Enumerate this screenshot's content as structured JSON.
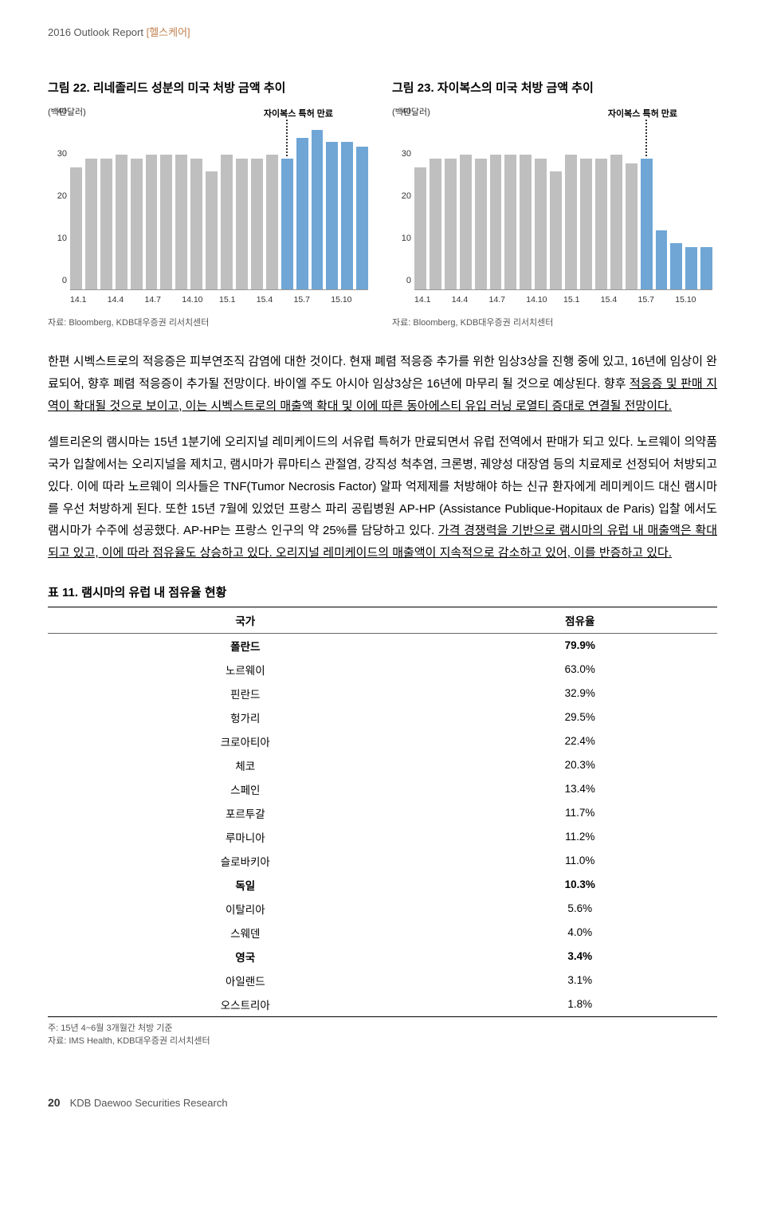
{
  "header": {
    "report_line": "2016 Outlook Report",
    "category": "[헬스케어]"
  },
  "chart_left": {
    "title": "그림 22. 리네졸리드 성분의 미국 처방 금액 추이",
    "ylabel": "(백만달러)",
    "annotation": "자이복스 특허 만료",
    "ylim": [
      0,
      40
    ],
    "yticks": [
      0,
      10,
      20,
      30,
      40
    ],
    "xticks": [
      "14.1",
      "14.4",
      "14.7",
      "14.10",
      "15.1",
      "15.4",
      "15.7",
      "15.10"
    ],
    "bars": [
      {
        "v": 29,
        "h": 0
      },
      {
        "v": 31,
        "h": 0
      },
      {
        "v": 31,
        "h": 0
      },
      {
        "v": 32,
        "h": 0
      },
      {
        "v": 31,
        "h": 0
      },
      {
        "v": 32,
        "h": 0
      },
      {
        "v": 32,
        "h": 0
      },
      {
        "v": 32,
        "h": 0
      },
      {
        "v": 31,
        "h": 0
      },
      {
        "v": 28,
        "h": 0
      },
      {
        "v": 32,
        "h": 0
      },
      {
        "v": 31,
        "h": 0
      },
      {
        "v": 31,
        "h": 0
      },
      {
        "v": 32,
        "h": 0
      },
      {
        "v": 31,
        "h": 1
      },
      {
        "v": 36,
        "h": 1
      },
      {
        "v": 38,
        "h": 1
      },
      {
        "v": 35,
        "h": 1
      },
      {
        "v": 35,
        "h": 1
      },
      {
        "v": 34,
        "h": 1
      }
    ],
    "annotation_bar_index": 14,
    "source": "자료: Bloomberg, KDB대우증권 리서치센터",
    "colors": {
      "gray": "#bfbfbf",
      "blue": "#6fa6d6",
      "axis": "#999999"
    }
  },
  "chart_right": {
    "title": "그림 23. 자이복스의 미국 처방 금액 추이",
    "ylabel": "(백만달러)",
    "annotation": "자이복스 특허 만료",
    "ylim": [
      0,
      40
    ],
    "yticks": [
      0,
      10,
      20,
      30,
      40
    ],
    "xticks": [
      "14.1",
      "14.4",
      "14.7",
      "14.10",
      "15.1",
      "15.4",
      "15.7",
      "15.10"
    ],
    "bars": [
      {
        "v": 29,
        "h": 0
      },
      {
        "v": 31,
        "h": 0
      },
      {
        "v": 31,
        "h": 0
      },
      {
        "v": 32,
        "h": 0
      },
      {
        "v": 31,
        "h": 0
      },
      {
        "v": 32,
        "h": 0
      },
      {
        "v": 32,
        "h": 0
      },
      {
        "v": 32,
        "h": 0
      },
      {
        "v": 31,
        "h": 0
      },
      {
        "v": 28,
        "h": 0
      },
      {
        "v": 32,
        "h": 0
      },
      {
        "v": 31,
        "h": 0
      },
      {
        "v": 31,
        "h": 0
      },
      {
        "v": 32,
        "h": 0
      },
      {
        "v": 30,
        "h": 0
      },
      {
        "v": 31,
        "h": 1
      },
      {
        "v": 14,
        "h": 1
      },
      {
        "v": 11,
        "h": 1
      },
      {
        "v": 10,
        "h": 1
      },
      {
        "v": 10,
        "h": 1
      }
    ],
    "annotation_bar_index": 15,
    "source": "자료: Bloomberg, KDB대우증권 리서치센터",
    "colors": {
      "gray": "#bfbfbf",
      "blue": "#6fa6d6",
      "axis": "#999999"
    }
  },
  "paragraphs": {
    "p1_a": "한편 시벡스트로의 적응증은 피부연조직 감염에 대한 것이다. 현재 폐렴 적응증 추가를 위한 임상3상을 진행 중에 있고, 16년에 임상이 완료되어, 향후 폐렴 적응증이 추가될 전망이다. 바이엘 주도 아시아 임상3상은 16년에 마무리 될 것으로 예상된다. 향후 ",
    "p1_u": "적응증 및 판매 지역이 확대될 것으로 보이고, 이는 시벡스트로의 매출액 확대 및 이에 따른 동아에스티 유입 러닝 로열티 증대로 연결될 전망이다.",
    "p2_a": "셀트리온의 램시마는 15년 1분기에 오리지널 레미케이드의 서유럽 특허가 만료되면서 유럽 전역에서 판매가 되고 있다. 노르웨이 의약품 국가 입찰에서는 오리지널을 제치고, 램시마가 류마티스 관절염, 강직성 척추염, 크론병, 궤양성 대장염 등의 치료제로 선정되어 처방되고 있다. 이에 따라 노르웨이 의사들은 TNF(Tumor Necrosis Factor) 알파 억제제를 처방해야 하는 신규 환자에게 레미케이드 대신 램시마를 우선 처방하게 된다. 또한 15년 7월에 있었던 프랑스 파리 공립병원 AP-HP (Assistance Publique-Hopitaux de Paris) 입찰 에서도 램시마가 수주에 성공했다. AP-HP는 프랑스 인구의 약 25%를 담당하고 있다. ",
    "p2_u": "가격 경쟁력을 기반으로 램시마의 유럽 내 매출액은 확대되고 있고, 이에 따라 점유율도 상승하고 있다. 오리지널 레미케이드의 매출액이 지속적으로 감소하고 있어, 이를 반증하고 있다."
  },
  "table": {
    "title": "표 11. 램시마의 유럽 내 점유율 현황",
    "head_country": "국가",
    "head_share": "점유율",
    "rows": [
      {
        "c": "폴란드",
        "s": "79.9%",
        "bold": true
      },
      {
        "c": "노르웨이",
        "s": "63.0%",
        "bold": false
      },
      {
        "c": "핀란드",
        "s": "32.9%",
        "bold": false
      },
      {
        "c": "헝가리",
        "s": "29.5%",
        "bold": false
      },
      {
        "c": "크로아티아",
        "s": "22.4%",
        "bold": false
      },
      {
        "c": "체코",
        "s": "20.3%",
        "bold": false
      },
      {
        "c": "스페인",
        "s": "13.4%",
        "bold": false
      },
      {
        "c": "포르투갈",
        "s": "11.7%",
        "bold": false
      },
      {
        "c": "루마니아",
        "s": "11.2%",
        "bold": false
      },
      {
        "c": "슬로바키아",
        "s": "11.0%",
        "bold": false
      },
      {
        "c": "독일",
        "s": "10.3%",
        "bold": true
      },
      {
        "c": "이탈리아",
        "s": "5.6%",
        "bold": false
      },
      {
        "c": "스웨덴",
        "s": "4.0%",
        "bold": false
      },
      {
        "c": "영국",
        "s": "3.4%",
        "bold": true
      },
      {
        "c": "아일랜드",
        "s": "3.1%",
        "bold": false
      },
      {
        "c": "오스트리아",
        "s": "1.8%",
        "bold": false
      }
    ],
    "note1": "주: 15년 4~6월 3개월간 처방 기준",
    "note2": "자료: IMS Health, KDB대우증권 리서치센터"
  },
  "footer": {
    "page": "20",
    "text": "KDB Daewoo Securities Research"
  }
}
